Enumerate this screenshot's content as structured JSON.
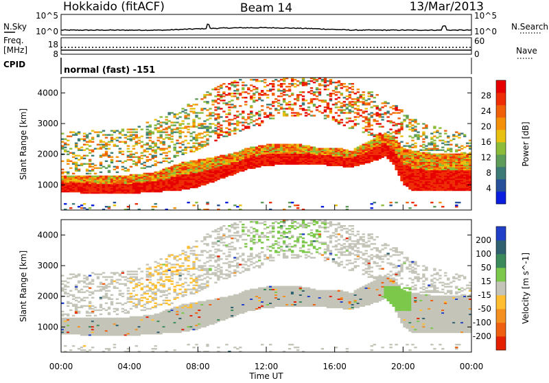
{
  "header": {
    "radar": "Hokkaido (fitACF)",
    "beam": "Beam 14",
    "date": "13/Mar/2013"
  },
  "noise_panel": {
    "left_label": "N.Sky",
    "left_ticks": [
      "10^5",
      "10^0"
    ],
    "right_ticks": [
      "10^5",
      "10^0"
    ],
    "right_label": "N.Search"
  },
  "freq_panel": {
    "left_label_line1": "Freq.",
    "left_label_line2": "[MHz]",
    "left_ticks": [
      "18",
      "8"
    ],
    "right_ticks": [
      "60",
      "0"
    ],
    "right_label": "Nave"
  },
  "cpid_panel": {
    "label": "CPID",
    "mode_text": "normal (fast) -151"
  },
  "time_axis": {
    "label": "Time UT",
    "ticks": [
      "00:00",
      "04:00",
      "08:00",
      "12:00",
      "16:00",
      "20:00",
      "00:00"
    ]
  },
  "chart_data": [
    {
      "type": "heatmap",
      "parameter": "Power",
      "ylabel": "Slant Range [km]",
      "yticks": [
        1000,
        2000,
        3000,
        4000
      ],
      "ylim": [
        180,
        4500
      ],
      "xlim_hours": [
        0,
        24
      ],
      "colorbar": {
        "label": "Power [dB]",
        "ticks": [
          "4",
          "8",
          "12",
          "16",
          "20",
          "24",
          "28"
        ],
        "colors": [
          "#0a1ee0",
          "#27509a",
          "#3c7a78",
          "#5e9c59",
          "#8cbc3a",
          "#e8c010",
          "#f49008",
          "#f06008",
          "#ee2c06",
          "#e70000"
        ]
      },
      "bands": [
        {
          "desc": "main echo band",
          "t_hours": [
            0,
            2,
            4,
            5.5,
            7,
            8,
            9,
            10,
            11,
            12,
            13,
            14,
            15,
            16,
            17,
            18,
            19,
            19.5,
            20,
            20.5,
            22,
            24
          ],
          "range_low_km": [
            750,
            700,
            700,
            750,
            800,
            900,
            1100,
            1300,
            1500,
            1600,
            1650,
            1650,
            1650,
            1600,
            1550,
            1700,
            1900,
            1600,
            1000,
            800,
            800,
            800
          ],
          "range_high_km": [
            1300,
            1300,
            1300,
            1400,
            1700,
            1800,
            1900,
            2000,
            2200,
            2300,
            2300,
            2300,
            2200,
            2200,
            2100,
            2400,
            2700,
            2500,
            2200,
            2100,
            2000,
            2000
          ],
          "power_db": 26
        },
        {
          "desc": "upper scatter",
          "t_hours": [
            0,
            4,
            7,
            9,
            11,
            13,
            15,
            17,
            19,
            21,
            24
          ],
          "range_low_km": [
            1300,
            1400,
            1800,
            2400,
            2800,
            3200,
            3200,
            2800,
            2400,
            2100,
            2000
          ],
          "range_high_km": [
            2700,
            2800,
            3500,
            4200,
            4500,
            4500,
            4500,
            4300,
            3800,
            3000,
            2600
          ],
          "power_db": 14
        }
      ]
    },
    {
      "type": "heatmap",
      "parameter": "Velocity",
      "ylabel": "Slant Range [km]",
      "yticks": [
        1000,
        2000,
        3000,
        4000
      ],
      "ylim": [
        180,
        4500
      ],
      "xlim_hours": [
        0,
        24
      ],
      "colorbar": {
        "label": "Velocity [m s^-1]",
        "ticks": [
          "200",
          "100",
          "50",
          "15",
          "-15",
          "-50",
          "-100",
          "-200"
        ],
        "colors": [
          "#2040c8",
          "#2f6070",
          "#3a8a5a",
          "#7cc84a",
          "#c4c4b8",
          "#ffbe30",
          "#f49020",
          "#ee6010",
          "#e42000"
        ]
      },
      "bands": [
        {
          "desc": "main echo band (near zero velocity)",
          "t_hours": [
            0,
            4,
            8,
            12,
            16,
            19,
            20,
            24
          ],
          "velocity_ms": 0
        },
        {
          "desc": "positive velocity features",
          "t_hours": [
            11,
            15,
            19,
            20
          ],
          "velocity_ms": 60
        }
      ]
    }
  ]
}
